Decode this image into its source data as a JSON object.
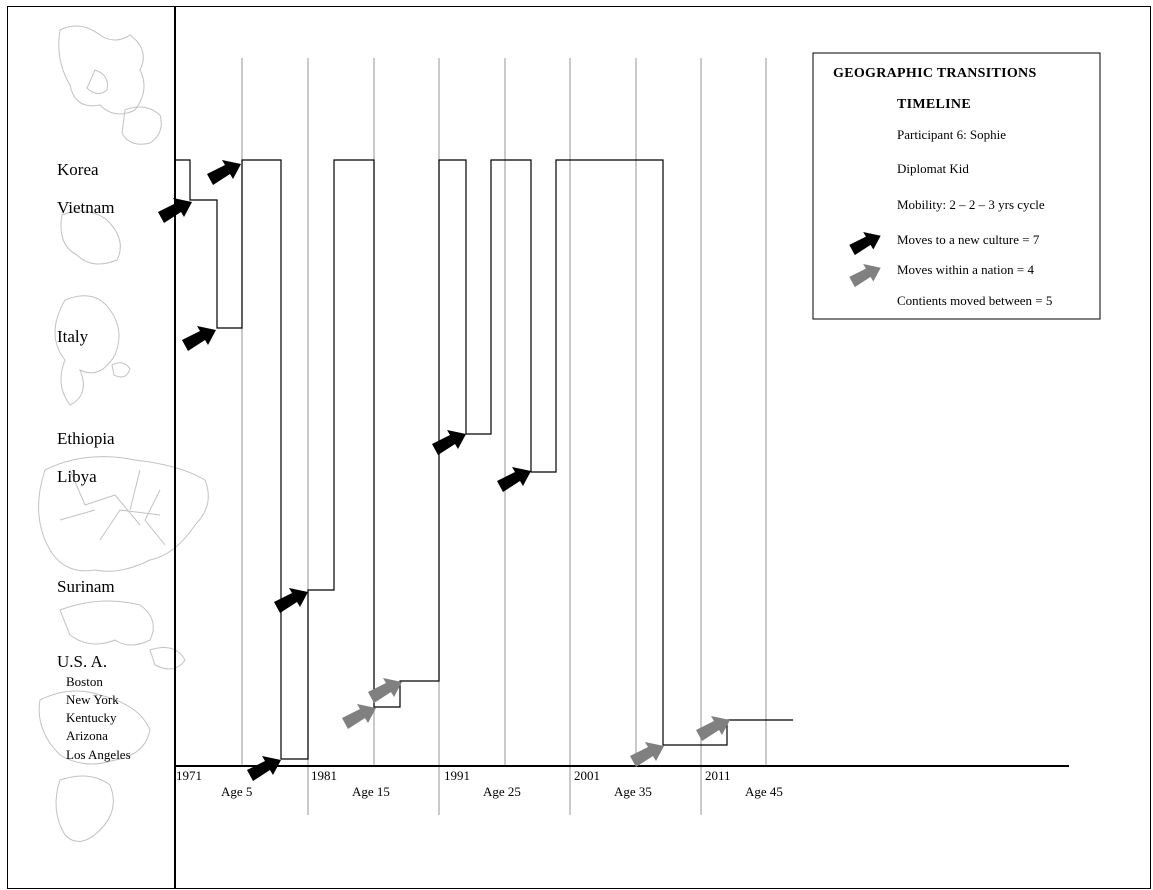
{
  "places": {
    "korea": "Korea",
    "vietnam": "Vietnam",
    "italy": "Italy",
    "ethiopia": "Ethiopia",
    "libya": "Libya",
    "surinam": "Surinam",
    "usa": "U.S. A.",
    "boston": "Boston",
    "new_york": "New York",
    "kentucky": "Kentucky",
    "arizona": "Arizona",
    "los_angeles": "Los Angeles"
  },
  "axis": {
    "years": [
      "1971",
      "1981",
      "1991",
      "2001",
      "2011"
    ],
    "ages": [
      "Age 5",
      "Age 15",
      "Age 25",
      "Age 35",
      "Age 45"
    ]
  },
  "legend": {
    "title": "GEOGRAPHIC TRANSITIONS",
    "subtitle": "TIMELINE",
    "participant": "Participant 6: Sophie",
    "type": "Diplomat Kid",
    "mobility": "Mobility: 2 – 2 – 3 yrs cycle",
    "new_culture": "Moves to a new culture = 7",
    "within_nation": "Moves within a nation = 4",
    "continents": "Contients moved between = 5"
  },
  "colors": {
    "new_culture_arrow": "#000000",
    "within_nation_arrow": "#808080",
    "gridline": "#a6a6a6",
    "map_outline": "#bdbdbd"
  },
  "icons": {
    "new_culture": "black-arrow-icon",
    "within_nation": "gray-arrow-icon"
  }
}
